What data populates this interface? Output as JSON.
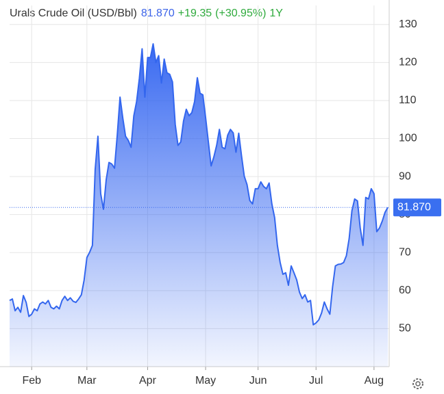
{
  "chart_data": {
    "type": "area",
    "title": "Urals Crude Oil (USD/Bbl)",
    "price": "81.870",
    "change": "+19.35",
    "change_pct": "(+30.95%)",
    "period": "1Y",
    "color": "#3366ee",
    "categories": [
      null,
      null,
      null,
      null,
      null,
      null,
      null,
      null,
      "Feb",
      null,
      null,
      null,
      null,
      null,
      null,
      null,
      null,
      null,
      null,
      null,
      null,
      null,
      null,
      null,
      null,
      null,
      null,
      null,
      "Mar",
      null,
      null,
      null,
      null,
      null,
      null,
      null,
      null,
      null,
      null,
      null,
      null,
      null,
      null,
      null,
      null,
      null,
      null,
      null,
      null,
      null,
      "Apr",
      null,
      null,
      null,
      null,
      null,
      null,
      null,
      null,
      null,
      null,
      null,
      null,
      null,
      null,
      null,
      null,
      null,
      null,
      null,
      null,
      "May",
      null,
      null,
      null,
      null,
      null,
      null,
      null,
      null,
      null,
      null,
      null,
      null,
      null,
      null,
      null,
      null,
      null,
      null,
      "Jun",
      null,
      null,
      null,
      null,
      null,
      null,
      null,
      null,
      null,
      null,
      null,
      null,
      null,
      null,
      null,
      null,
      null,
      null,
      null,
      null,
      "Jul",
      null,
      null,
      null,
      null,
      null,
      null,
      null,
      null,
      null,
      null,
      null,
      null,
      null,
      null,
      null,
      null,
      null,
      null,
      null,
      null,
      "Aug",
      null,
      null,
      null,
      null,
      null
    ],
    "values": [
      57.4,
      57.8,
      54.7,
      55.6,
      54.3,
      58.7,
      56.9,
      53.2,
      53.8,
      55.2,
      54.7,
      56.5,
      57,
      56.5,
      57.4,
      55.6,
      55.2,
      55.9,
      55.2,
      57.4,
      58.5,
      57.4,
      58.1,
      57.2,
      56.9,
      57.8,
      58.9,
      62.8,
      68.7,
      70.1,
      71.9,
      91.9,
      100.6,
      85.5,
      81.4,
      89.2,
      93.7,
      93.3,
      92.2,
      100.9,
      110.9,
      105.4,
      100.6,
      99.5,
      97.7,
      106,
      109.7,
      115.8,
      123.6,
      110.9,
      121.3,
      121.3,
      124.9,
      120,
      121.8,
      114.6,
      120.9,
      117.3,
      116.9,
      114.9,
      103.7,
      98.2,
      99.1,
      104.6,
      107.7,
      106,
      106.8,
      109.7,
      116,
      111.9,
      111.5,
      105.5,
      99.1,
      92.8,
      95.2,
      98.2,
      102.4,
      97.7,
      97.3,
      100.9,
      102.4,
      101.5,
      96.4,
      101.4,
      95.5,
      90.1,
      87.9,
      83.7,
      82.8,
      86.8,
      86.8,
      88.6,
      87.4,
      86.8,
      88.3,
      82.8,
      79.2,
      71.9,
      67.4,
      64.3,
      64.7,
      61.4,
      66.5,
      64.7,
      62.8,
      59.6,
      57.9,
      58.9,
      57,
      57.4,
      51,
      51.5,
      52.3,
      54.1,
      57,
      55.2,
      53.8,
      61,
      66.5,
      66.9,
      67,
      67.4,
      69.2,
      73.7,
      81,
      84.1,
      83.6,
      76.5,
      71.9,
      84.5,
      84.1,
      86.8,
      85.5,
      75.5,
      76.5,
      78.3,
      80.6,
      81.87
    ],
    "ylim": [
      40,
      135
    ],
    "yticks": [
      50,
      60,
      70,
      80,
      90,
      100,
      110,
      120,
      130
    ],
    "grid": true
  }
}
